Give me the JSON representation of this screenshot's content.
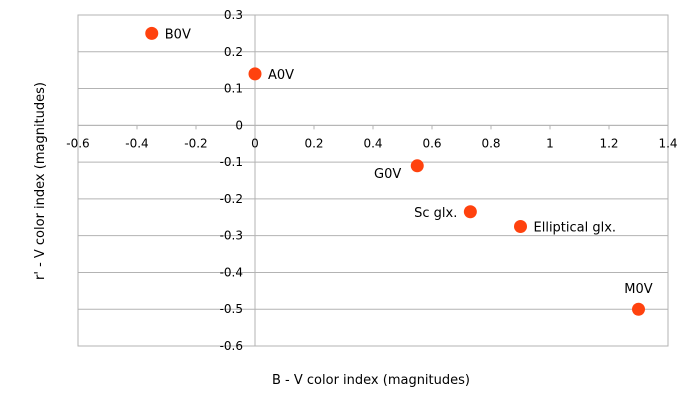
{
  "chart_data": {
    "type": "scatter",
    "title": "",
    "xlabel": "B - V color index (magnitudes)",
    "ylabel": "r' - V color index (magnitudes)",
    "xlim": [
      -0.6,
      1.4
    ],
    "ylim": [
      -0.6,
      0.3
    ],
    "xticks": [
      "-0.6",
      "-0.4",
      "-0.2",
      "0",
      "0.2",
      "0.4",
      "0.6",
      "0.8",
      "1",
      "1.2",
      "1.4"
    ],
    "yticks": [
      "0.3",
      "0.2",
      "0.1",
      "0",
      "-0.1",
      "-0.2",
      "-0.3",
      "-0.4",
      "-0.5",
      "-0.6"
    ],
    "grid": "horizontal",
    "marker_color": "#ff420e",
    "points": [
      {
        "label": "B0V",
        "x": -0.35,
        "y": 0.25,
        "label_side": "right"
      },
      {
        "label": "A0V",
        "x": 0.0,
        "y": 0.14,
        "label_side": "right"
      },
      {
        "label": "G0V",
        "x": 0.55,
        "y": -0.11,
        "label_side": "below-left"
      },
      {
        "label": "Sc glx.",
        "x": 0.73,
        "y": -0.235,
        "label_side": "left"
      },
      {
        "label": "Elliptical glx.",
        "x": 0.9,
        "y": -0.275,
        "label_side": "right"
      },
      {
        "label": "M0V",
        "x": 1.3,
        "y": -0.5,
        "label_side": "above"
      }
    ]
  }
}
